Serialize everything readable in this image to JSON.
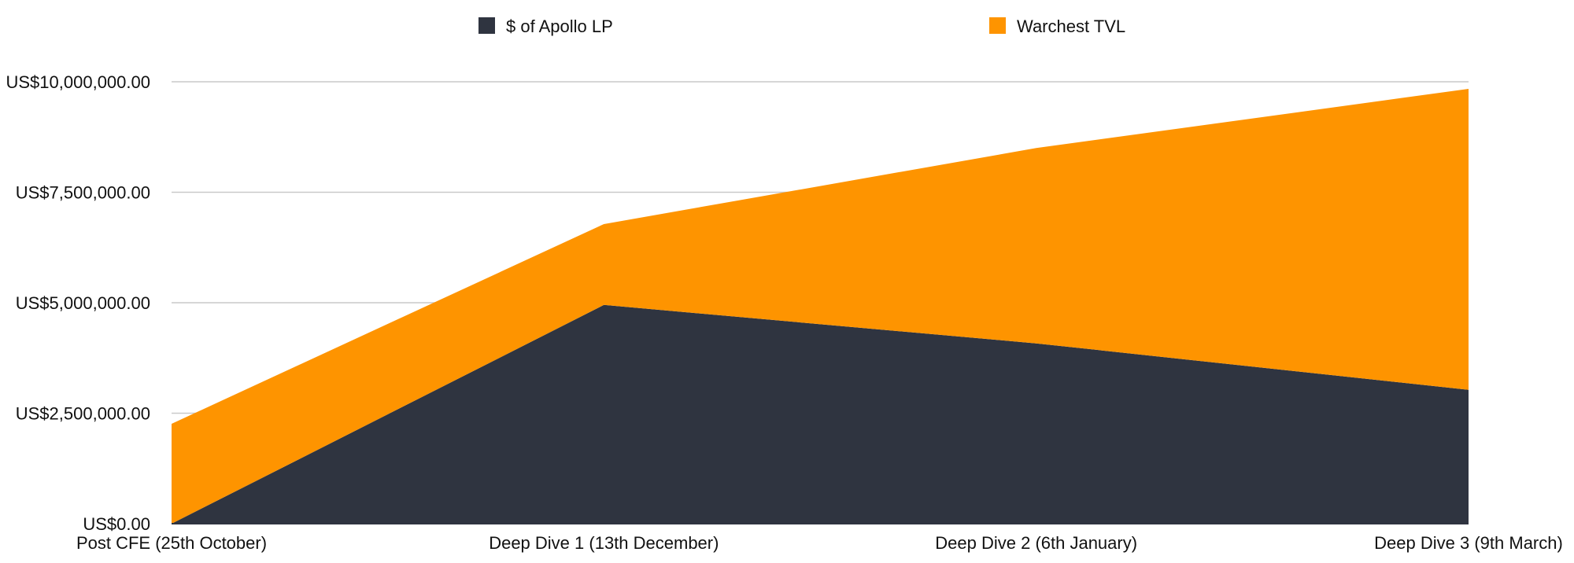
{
  "chart_data": {
    "type": "area",
    "stacked": true,
    "categories": [
      "Post CFE (25th October)",
      "Deep Dive 1 (13th December)",
      "Deep Dive 2 (6th January)",
      "Deep Dive 3 (9th March)"
    ],
    "series": [
      {
        "name": "$ of Apollo LP",
        "color": "#2f3440",
        "values": [
          0,
          4950000,
          4080000,
          3030000
        ]
      },
      {
        "name": "Warchest TVL",
        "color": "#fe9400",
        "values": [
          2260000,
          1830000,
          4420000,
          6810000
        ]
      }
    ],
    "ylim": [
      0,
      10000000
    ],
    "yticks": [
      0,
      2500000,
      5000000,
      7500000,
      10000000
    ],
    "ytick_labels": [
      "US$0.00",
      "US$2,500,000.00",
      "US$5,000,000.00",
      "US$7,500,000.00",
      "US$10,000,000.00"
    ],
    "grid": true,
    "legend_position": "top-center",
    "title": "",
    "xlabel": "",
    "ylabel": ""
  }
}
